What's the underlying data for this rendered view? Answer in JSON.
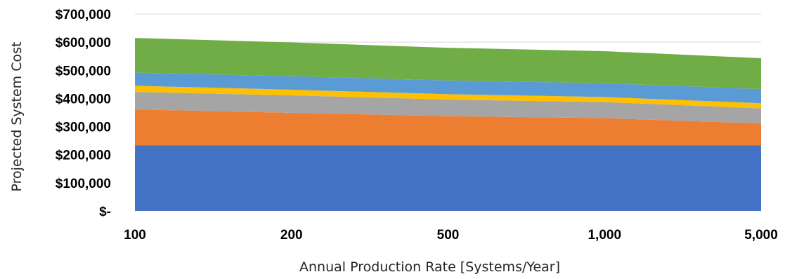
{
  "chart_data": {
    "type": "area",
    "stacked": true,
    "title": "",
    "xlabel": "Annual Production Rate [Systems/Year]",
    "ylabel": "Projected System Cost",
    "x_categories": [
      "100",
      "200",
      "500",
      "1,000",
      "5,000"
    ],
    "ylim": [
      0,
      700000
    ],
    "y_ticks": [
      {
        "value": 0,
        "label": "$-"
      },
      {
        "value": 100000,
        "label": "$100,000"
      },
      {
        "value": 200000,
        "label": "$200,000"
      },
      {
        "value": 300000,
        "label": "$300,000"
      },
      {
        "value": 400000,
        "label": "$400,000"
      },
      {
        "value": 500000,
        "label": "$500,000"
      },
      {
        "value": 600000,
        "label": "$600,000"
      },
      {
        "value": 700000,
        "label": "$700,000"
      }
    ],
    "grid": "horizontal",
    "legend": "none",
    "series": [
      {
        "color": "#4472C4",
        "values": [
          233000,
          233000,
          233000,
          233000,
          233000
        ]
      },
      {
        "color": "#ED7D31",
        "values": [
          128000,
          116000,
          104000,
          97000,
          78000
        ]
      },
      {
        "color": "#A5A5A5",
        "values": [
          62000,
          62000,
          59000,
          57000,
          54000
        ]
      },
      {
        "color": "#FFC000",
        "values": [
          22000,
          20000,
          19000,
          18000,
          18000
        ]
      },
      {
        "color": "#5B9BD5",
        "values": [
          47000,
          48000,
          49000,
          49000,
          50000
        ]
      },
      {
        "color": "#70AD47",
        "values": [
          123000,
          120000,
          116000,
          114000,
          110000
        ]
      }
    ]
  }
}
